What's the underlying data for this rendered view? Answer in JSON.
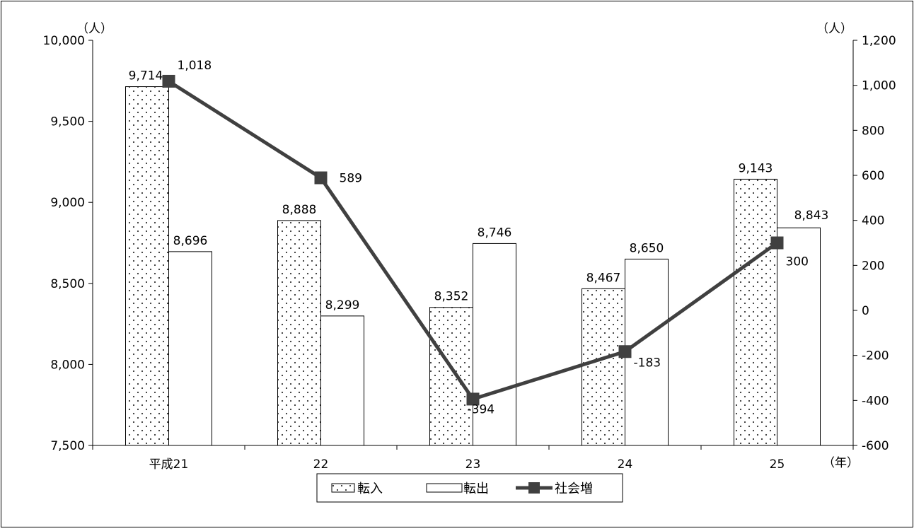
{
  "chart_data": {
    "type": "bar",
    "categories": [
      "平成21",
      "22",
      "23",
      "24",
      "25"
    ],
    "series": [
      {
        "name": "転入",
        "type": "bar",
        "axis": "left",
        "fill": "dotted",
        "values": [
          9714,
          8888,
          8352,
          8467,
          9143
        ],
        "labels": [
          "9,714",
          "8,888",
          "8,352",
          "8,467",
          "9,143"
        ]
      },
      {
        "name": "転出",
        "type": "bar",
        "axis": "left",
        "fill": "white",
        "values": [
          8696,
          8299,
          8746,
          8650,
          8843
        ],
        "labels": [
          "8,696",
          "8,299",
          "8,746",
          "8,650",
          "8,843"
        ]
      },
      {
        "name": "社会増",
        "type": "line",
        "axis": "right",
        "color": "#404040",
        "values": [
          1018,
          589,
          -394,
          -183,
          300
        ],
        "labels": [
          "1,018",
          "589",
          "-394",
          "-183",
          "300"
        ]
      }
    ],
    "y_left": {
      "unit": "（人）",
      "ylim": [
        7500,
        10000
      ],
      "ticks": [
        7500,
        8000,
        8500,
        9000,
        9500,
        10000
      ],
      "tick_labels": [
        "7,500",
        "8,000",
        "8,500",
        "9,000",
        "9,500",
        "10,000"
      ]
    },
    "y_right": {
      "unit": "（人）",
      "ylim": [
        -600,
        1200
      ],
      "ticks": [
        -600,
        -400,
        -200,
        0,
        200,
        400,
        600,
        800,
        1000,
        1200
      ],
      "tick_labels": [
        "-600",
        "-400",
        "-200",
        "0",
        "200",
        "400",
        "600",
        "800",
        "1,000",
        "1,200"
      ]
    },
    "x_unit": "（年）",
    "grid": false,
    "legend": {
      "position": "bottom",
      "items": [
        "転入",
        "転出",
        "社会増"
      ]
    }
  }
}
